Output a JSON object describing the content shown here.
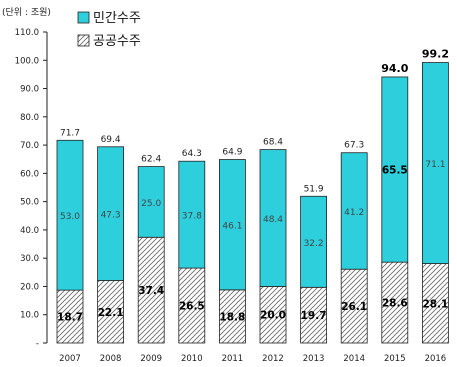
{
  "chart_data": {
    "type": "bar",
    "stacked": true,
    "unit_label": "(단위 : 조원)",
    "categories": [
      "2007",
      "2008",
      "2009",
      "2010",
      "2011",
      "2012",
      "2013",
      "2014",
      "2015",
      "2016"
    ],
    "series": [
      {
        "name": "공공수주",
        "values": [
          18.7,
          22.1,
          37.4,
          26.5,
          18.8,
          20.0,
          19.7,
          26.1,
          28.6,
          28.1
        ],
        "labels": [
          "18.7",
          "22.1",
          "37.4",
          "26.5",
          "18.8",
          "20.0",
          "19.7",
          "26.1",
          "28.6",
          "28.1"
        ],
        "color": "#ffffff",
        "pattern": "hatch"
      },
      {
        "name": "민간수주",
        "values": [
          53.0,
          47.3,
          25.0,
          37.8,
          46.1,
          48.4,
          32.2,
          41.2,
          65.5,
          71.1
        ],
        "labels": [
          "53.0",
          "47.3",
          "25.0",
          "37.8",
          "46.1",
          "48.4",
          "32.2",
          "41.2",
          "65.5",
          "71.1"
        ],
        "bold": [
          false,
          false,
          false,
          false,
          false,
          false,
          false,
          false,
          true,
          false
        ],
        "color": "#2ecfdc"
      }
    ],
    "totals": [
      71.7,
      69.4,
      62.4,
      64.3,
      64.9,
      68.4,
      51.9,
      67.3,
      94.0,
      99.2
    ],
    "total_labels": [
      "71.7",
      "69.4",
      "62.4",
      "64.3",
      "64.9",
      "68.4",
      "51.9",
      "67.3",
      "94.0",
      "99.2"
    ],
    "totals_bold": [
      false,
      false,
      false,
      false,
      false,
      false,
      false,
      false,
      true,
      true
    ],
    "ylim": [
      0,
      110
    ],
    "yticks": [
      0,
      10,
      20,
      30,
      40,
      50,
      60,
      70,
      80,
      90,
      100,
      110
    ],
    "ytick_labels": [
      "-",
      "10.0",
      "20.0",
      "30.0",
      "40.0",
      "50.0",
      "60.0",
      "70.0",
      "80.0",
      "90.0",
      "100.0",
      "110.0"
    ],
    "legend": {
      "placement": "top-left",
      "items": [
        "민간수주",
        "공공수주"
      ]
    },
    "grid": false
  }
}
